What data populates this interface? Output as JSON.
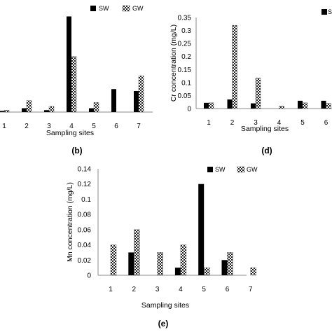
{
  "chart_data": [
    {
      "panel_label": "(b)",
      "type": "bar",
      "xlabel": "Sampling sites",
      "ylabel": "",
      "categories": [
        "1",
        "2",
        "3",
        "4",
        "5",
        "6",
        "7"
      ],
      "series": [
        {
          "name": "SW",
          "color": "#000000",
          "pattern": "solid",
          "values": [
            0.3,
            1.0,
            0.5,
            25.0,
            1.0,
            6.0,
            5.5
          ]
        },
        {
          "name": "GW",
          "color": "#ffffff",
          "pattern": "checker",
          "values": [
            0.5,
            3.0,
            1.5,
            14.5,
            2.5,
            null,
            9.5
          ]
        }
      ],
      "yticks": [],
      "ylim": [
        0,
        26
      ]
    },
    {
      "panel_label": "(d)",
      "type": "bar",
      "xlabel": "Sampling sites",
      "ylabel": "Cr concentration (mg/L)",
      "categories": [
        "1",
        "2",
        "3",
        "4",
        "5",
        "6"
      ],
      "series": [
        {
          "name": "SW",
          "color": "#000000",
          "pattern": "solid",
          "values": [
            0.022,
            0.035,
            0.02,
            null,
            0.03,
            0.03
          ]
        },
        {
          "name": "GW",
          "color": "#ffffff",
          "pattern": "checker",
          "values": [
            0.022,
            0.32,
            0.118,
            0.01,
            0.022,
            0.02
          ]
        }
      ],
      "yticks": [
        "0",
        "0.05",
        "0.1",
        "0.15",
        "0.2",
        "0.25",
        "0.3",
        "0.35"
      ],
      "ylim": [
        0,
        0.35
      ],
      "legend_visible": [
        "Sv"
      ]
    },
    {
      "panel_label": "(e)",
      "type": "bar",
      "xlabel": "Sampling sites",
      "ylabel": "Mn concentration (mg/L)",
      "categories": [
        "1",
        "2",
        "3",
        "4",
        "5",
        "6",
        "7"
      ],
      "series": [
        {
          "name": "SW",
          "color": "#000000",
          "pattern": "solid",
          "values": [
            null,
            0.03,
            null,
            0.01,
            0.12,
            0.02,
            null
          ]
        },
        {
          "name": "GW",
          "color": "#ffffff",
          "pattern": "checker",
          "values": [
            0.04,
            0.06,
            0.03,
            0.04,
            0.01,
            0.03,
            0.01
          ]
        }
      ],
      "yticks": [
        "0",
        "0.02",
        "0.04",
        "0.06",
        "0.08",
        "0.1",
        "0.12",
        "0.14"
      ],
      "ylim": [
        0,
        0.14
      ]
    }
  ]
}
